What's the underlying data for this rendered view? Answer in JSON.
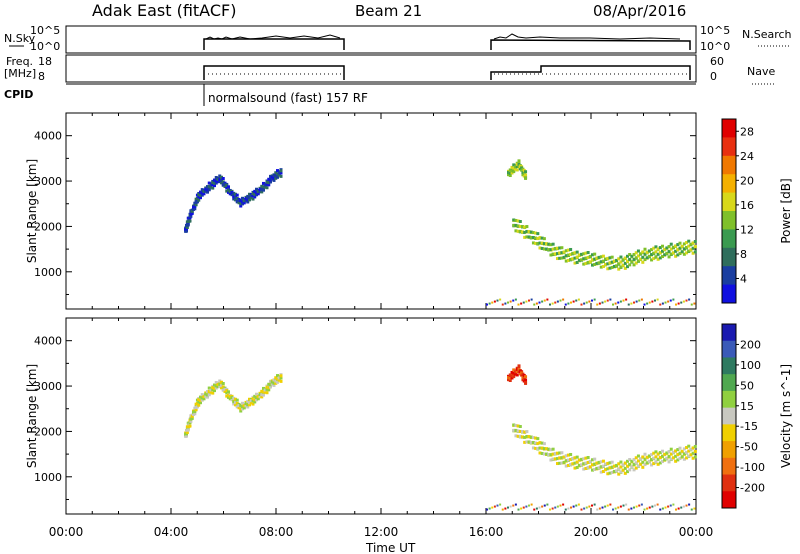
{
  "header": {
    "station": "Adak East (fitACF)",
    "beam": "Beam 21",
    "date": "08/Apr/2016"
  },
  "top_panels": {
    "nsky_label": "N.Sky",
    "nsearch_label": "N.Search",
    "log_top": "10^5",
    "log_bottom": "10^0",
    "freq_label_1": "Freq.",
    "freq_label_2": "[MHz]",
    "freq_top": "18",
    "freq_bottom": "8",
    "nave_label": "Nave",
    "nave_top": "60",
    "nave_bottom": "0",
    "cpid_label": "CPID",
    "cpid_name": "normalsound (fast) 157 RF"
  },
  "chart_data": [
    {
      "type": "heatmap",
      "title": "",
      "xlabel": "Time UT",
      "ylabel": "Slant Range [km]",
      "xlim": [
        "00:00",
        "24:00"
      ],
      "ylim": [
        180,
        4500
      ],
      "x_ticks": [
        "00:00",
        "04:00",
        "08:00",
        "12:00",
        "16:00",
        "20:00",
        "00:00"
      ],
      "y_ticks": [
        1000,
        2000,
        3000,
        4000
      ],
      "colorbar": {
        "label": "Power [dB]",
        "ticks": [
          4,
          8,
          12,
          16,
          20,
          24,
          28
        ],
        "range": [
          0,
          30
        ],
        "colors": [
          "#1010e0",
          "#1a3ea0",
          "#2f6e5c",
          "#3a9a50",
          "#7fc02a",
          "#d8d81a",
          "#f4b000",
          "#f07800",
          "#e83010",
          "#e00000"
        ]
      },
      "series": [
        {
          "x": [
            4.5,
            4.7,
            5.0,
            5.4,
            5.8,
            6.2,
            6.6,
            7.0,
            7.4,
            7.8,
            8.2
          ],
          "y": [
            1950,
            2300,
            2700,
            2900,
            3100,
            2800,
            2550,
            2700,
            2850,
            3100,
            3250
          ],
          "value": 4
        },
        {
          "x": [
            16.8,
            17.2,
            17.5
          ],
          "y": [
            3200,
            3400,
            3100
          ],
          "value": 14
        },
        {
          "x": [
            17.0,
            17.5,
            18.0,
            18.5,
            19.0,
            19.5,
            20.0,
            20.5,
            21.0,
            21.5,
            22.0,
            22.5,
            23.0,
            23.5,
            24.0
          ],
          "y": [
            2100,
            1900,
            1700,
            1500,
            1400,
            1350,
            1300,
            1250,
            1200,
            1300,
            1400,
            1450,
            1500,
            1550,
            1600
          ],
          "value": 12
        }
      ]
    },
    {
      "type": "heatmap",
      "title": "",
      "xlabel": "Time UT",
      "ylabel": "Slant Range [km]",
      "xlim": [
        "00:00",
        "24:00"
      ],
      "ylim": [
        180,
        4500
      ],
      "x_ticks": [
        "00:00",
        "04:00",
        "08:00",
        "12:00",
        "16:00",
        "20:00",
        "00:00"
      ],
      "y_ticks": [
        1000,
        2000,
        3000,
        4000
      ],
      "colorbar": {
        "label": "Velocity [m s^-1]",
        "ticks": [
          200,
          100,
          50,
          15,
          -15,
          -50,
          -100,
          -200
        ],
        "range": [
          -250,
          250
        ],
        "colors": [
          "#1a1ab0",
          "#3a5ab8",
          "#2e7a60",
          "#50a850",
          "#90d040",
          "#c8c8c0",
          "#f0d000",
          "#f0a000",
          "#f07010",
          "#e03010",
          "#e00000"
        ]
      },
      "series": [
        {
          "x": [
            4.5,
            4.7,
            5.0,
            5.4,
            5.8,
            6.2,
            6.6,
            7.0,
            7.4,
            7.8,
            8.2
          ],
          "y": [
            1950,
            2300,
            2700,
            2900,
            3100,
            2800,
            2550,
            2700,
            2850,
            3100,
            3250
          ],
          "value": -15
        },
        {
          "x": [
            16.8,
            17.2,
            17.5
          ],
          "y": [
            3200,
            3400,
            3100
          ],
          "value": -200
        },
        {
          "x": [
            17.0,
            17.5,
            18.0,
            18.5,
            19.0,
            19.5,
            20.0,
            20.5,
            21.0,
            21.5,
            22.0,
            22.5,
            23.0,
            23.5,
            24.0
          ],
          "y": [
            2100,
            1900,
            1700,
            1500,
            1400,
            1350,
            1300,
            1250,
            1200,
            1300,
            1400,
            1450,
            1500,
            1550,
            1600
          ],
          "value": 0
        }
      ]
    }
  ]
}
